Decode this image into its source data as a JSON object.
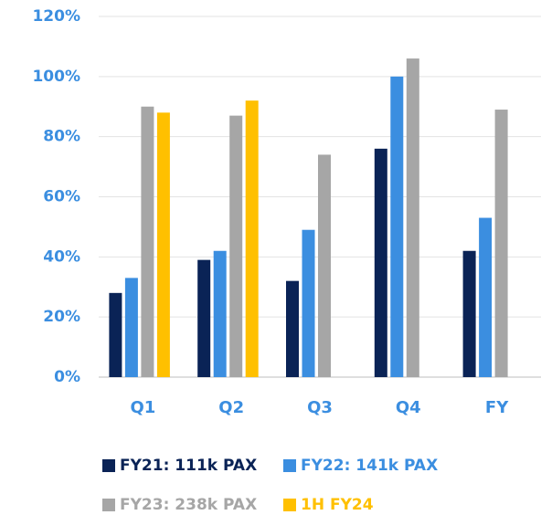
{
  "chart_data": {
    "type": "bar",
    "categories": [
      "Q1",
      "Q2",
      "Q3",
      "Q4",
      "FY"
    ],
    "series": [
      {
        "name": "FY21: 111k PAX",
        "color": "#0a2356",
        "values": [
          28,
          39,
          32,
          76,
          42
        ]
      },
      {
        "name": "FY22: 141k PAX",
        "color": "#3b8ee0",
        "values": [
          33,
          42,
          49,
          100,
          53
        ]
      },
      {
        "name": "FY23: 238k PAX",
        "color": "#a6a6a6",
        "values": [
          90,
          87,
          74,
          106,
          89
        ]
      },
      {
        "name": "1H FY24",
        "color": "#ffc000",
        "values": [
          88,
          92,
          null,
          null,
          null
        ]
      }
    ],
    "ylim": [
      0,
      120
    ],
    "yticks": [
      {
        "value": 0,
        "label": "0%"
      },
      {
        "value": 20,
        "label": "20%"
      },
      {
        "value": 40,
        "label": "40%"
      },
      {
        "value": 60,
        "label": "60%"
      },
      {
        "value": 80,
        "label": "80%"
      },
      {
        "value": 100,
        "label": "100%"
      },
      {
        "value": 120,
        "label": "120%"
      }
    ],
    "grid": true
  }
}
